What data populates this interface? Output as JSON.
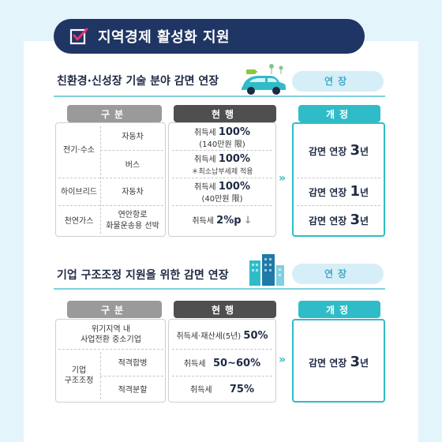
{
  "title": "지역경제 활성화 지원",
  "section1": {
    "title": "친환경·신성장 기술 분야 감면 연장",
    "badge": "연장",
    "headers": {
      "category": "구분",
      "current": "현행",
      "revised": "개정"
    },
    "rows": {
      "ev_group": "전기·수소",
      "ev_car": "자동차",
      "ev_bus": "버스",
      "hybrid": "하이브리드",
      "hybrid_car": "자동차",
      "gas": "천연가스",
      "gas_item_1": "연안항로",
      "gas_item_2": "화물운송용 선박"
    },
    "current": {
      "r1_label": "취득세",
      "r1_value": "100%",
      "r1_note": "(140만원 限)",
      "r2_label": "취득세",
      "r2_value": "100%",
      "r2_note": "＊최소납부세제 적용",
      "r3_label": "취득세",
      "r3_value": "100%",
      "r3_note": "(40만원 限)",
      "r4_label": "취득세",
      "r4_value": "2%p",
      "r4_arrow": "↓"
    },
    "revised": {
      "prefix": "감면 연장",
      "a_num": "3",
      "b_num": "1",
      "c_num": "3",
      "unit": "년"
    }
  },
  "section2": {
    "title": "기업 구조조정 지원을 위한 감면 연장",
    "badge": "연장",
    "headers": {
      "category": "구분",
      "current": "현행",
      "revised": "개정"
    },
    "rows": {
      "crisis_1": "위기지역 내",
      "crisis_2": "사업전환 중소기업",
      "restructure_1": "기업",
      "restructure_2": "구조조정",
      "merger": "적격합병",
      "split": "적격분할"
    },
    "current": {
      "r1_label": "취득세·재산세(5년)",
      "r1_value": "50%",
      "r2_label": "취득세",
      "r2_value": "50~60%",
      "r3_label": "취득세",
      "r3_value": "75%"
    },
    "revised": {
      "prefix": "감면 연장",
      "num": "3",
      "unit": "년"
    }
  },
  "arrow_glyph": "»",
  "colors": {
    "navy": "#1f3564",
    "teal": "#2fbcc8",
    "sky": "#e3f4fb",
    "gray_header": "#9a9a9a",
    "dark_header": "#4f4f4f"
  }
}
